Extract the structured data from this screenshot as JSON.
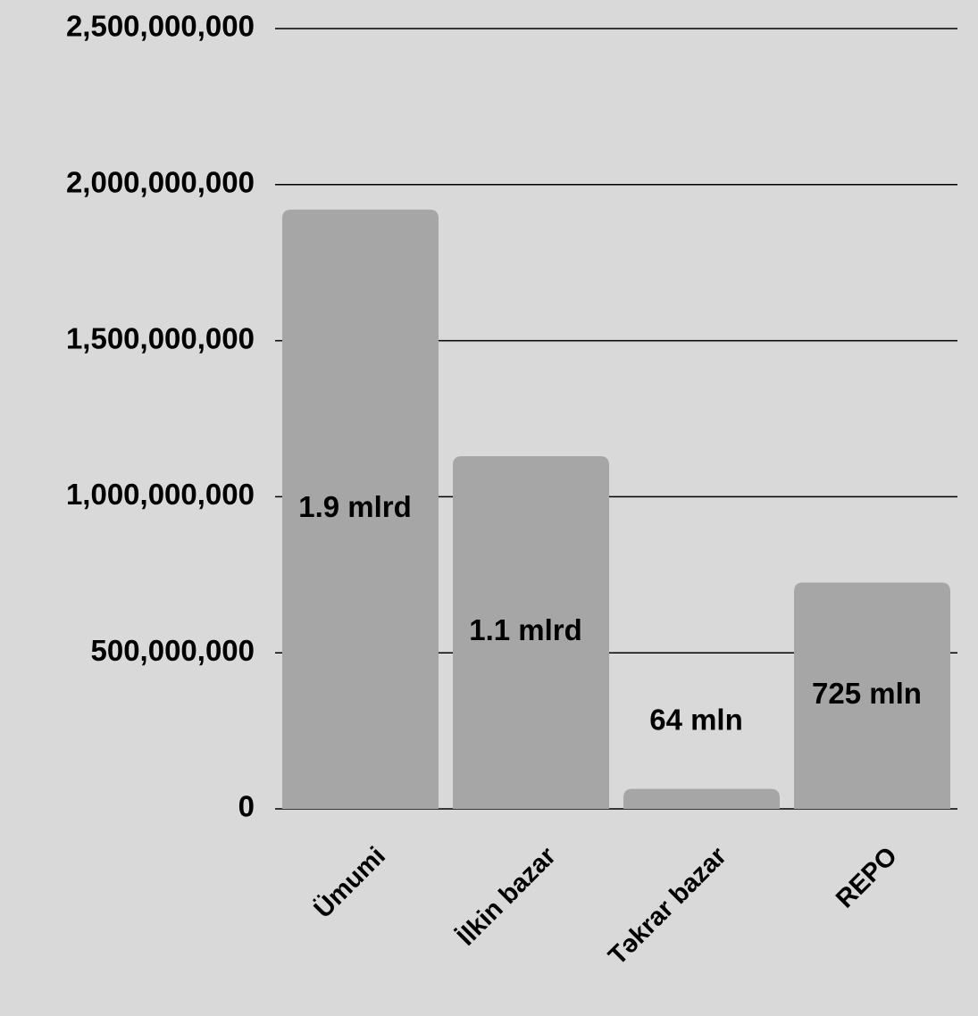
{
  "chart_data": {
    "type": "bar",
    "categories": [
      "Ümumi",
      "İlkin bazar",
      "Təkrar bazar",
      "REPO"
    ],
    "values": [
      1920000000,
      1130000000,
      64000000,
      725000000
    ],
    "value_labels": [
      "1.9 mlrd",
      "1.1 mlrd",
      "64 mln",
      "725 mln"
    ],
    "color": "#a6a6a6",
    "ylim": [
      0,
      2500000000
    ],
    "yticks": [
      0,
      {
        "value": 500000000,
        "label": "500,000,000"
      },
      {
        "value": 1000000000,
        "label": "1,000,000,000"
      },
      {
        "value": 1500000000,
        "label": "1,500,000,000"
      },
      {
        "value": 2000000000,
        "label": "2,000,000,000"
      },
      {
        "value": 2500000000,
        "label": "2,500,000,000"
      }
    ],
    "grid": true
  }
}
